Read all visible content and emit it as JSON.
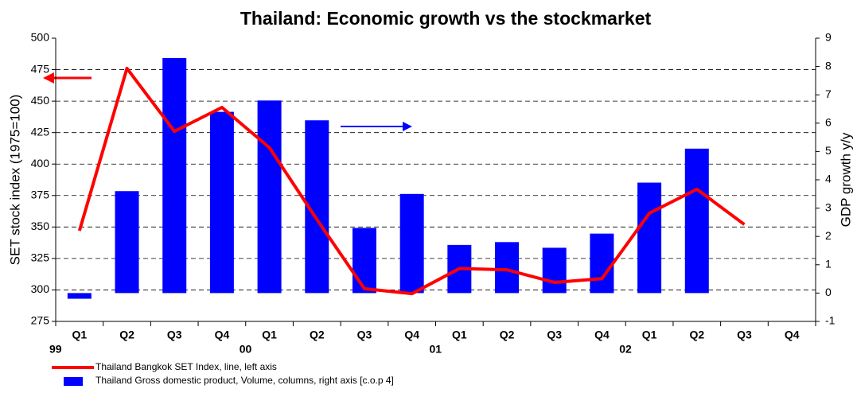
{
  "chart_data": {
    "type": "bar-line",
    "title": "Thailand: Economic growth vs the stockmarket",
    "y_label": "SET stock index (1975=100)",
    "y2_label": "GDP growth y/y",
    "categories": [
      "Q1",
      "Q2",
      "Q3",
      "Q4",
      "Q1",
      "Q2",
      "Q3",
      "Q4",
      "Q1",
      "Q2",
      "Q3",
      "Q4",
      "Q1",
      "Q2",
      "Q3",
      "Q4"
    ],
    "year_labels": [
      "99",
      null,
      null,
      null,
      "00",
      null,
      null,
      null,
      "01",
      null,
      null,
      null,
      "02",
      null,
      null,
      null
    ],
    "series": [
      {
        "name": "Thailand Bangkok SET Index, line, left axis",
        "type": "line",
        "color": "#ff0000",
        "values": [
          347,
          476,
          426,
          445,
          413,
          356,
          301,
          297,
          317,
          316,
          306,
          309,
          361,
          380,
          352,
          null
        ]
      },
      {
        "name": "Thailand Gross domestic product, Volume, columns, right axis   [c.o.p 4]",
        "type": "bar",
        "axis": "y2",
        "color": "#0000ff",
        "values": [
          -0.2,
          3.6,
          8.3,
          6.4,
          6.8,
          6.1,
          2.3,
          3.5,
          1.7,
          1.8,
          1.6,
          2.1,
          3.9,
          5.1,
          null,
          null
        ]
      }
    ],
    "ylim": [
      275,
      500
    ],
    "yticks": [
      275,
      300,
      325,
      350,
      375,
      400,
      425,
      450,
      475,
      500
    ],
    "y2lim": [
      -1,
      9
    ],
    "y2ticks": [
      -1,
      0,
      1,
      2,
      3,
      4,
      5,
      6,
      7,
      8,
      9
    ],
    "grid": true
  }
}
